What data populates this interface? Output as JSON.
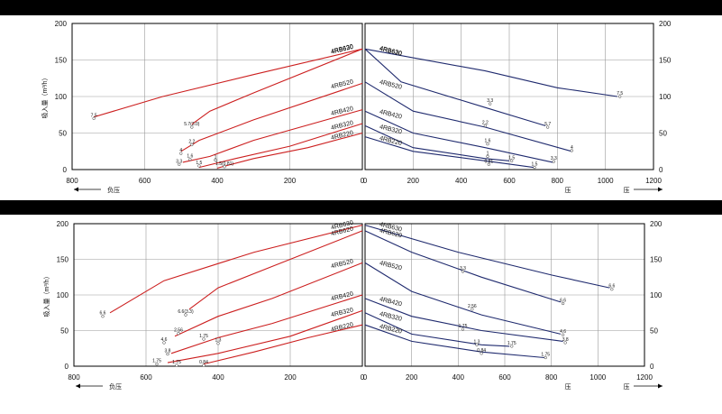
{
  "colors": {
    "vacuum": "#cc1f1f",
    "pressure": "#1f2a6e",
    "band": "#000000"
  },
  "y_axis_label": "吸入量（m³/h）",
  "left_caption": "负压",
  "right_caption_a": "压",
  "right_caption_b": "压",
  "chart_data": [
    {
      "type": "line",
      "panel": "top",
      "side": "vacuum",
      "xlim": [
        800,
        0
      ],
      "ylim": [
        0,
        200
      ],
      "x_ticks": [
        "800",
        "600",
        "400",
        "200",
        "0"
      ],
      "y_ticks": [
        "0",
        "50",
        "100",
        "150",
        "200"
      ],
      "series": [
        {
          "name": "4RB630",
          "x": [
            740,
            550,
            300,
            0
          ],
          "y": [
            72,
            100,
            130,
            165
          ],
          "labels": [
            {
              "text": "7.5",
              "x": 740,
              "y": 70
            }
          ]
        },
        {
          "name": "4RB620",
          "x": [
            470,
            420,
            300,
            0
          ],
          "y": [
            62,
            80,
            105,
            165
          ],
          "labels": [
            {
              "text": "5.7(3.0)",
              "x": 470,
              "y": 58
            }
          ]
        },
        {
          "name": "4RB520",
          "x": [
            500,
            450,
            300,
            0
          ],
          "y": [
            25,
            40,
            68,
            118
          ],
          "labels": [
            {
              "text": "4",
              "x": 500,
              "y": 22
            },
            {
              "text": "2.2",
              "x": 470,
              "y": 34
            }
          ]
        },
        {
          "name": "4RB420",
          "x": [
            495,
            420,
            300,
            0
          ],
          "y": [
            10,
            18,
            40,
            82
          ],
          "labels": [
            {
              "text": "3.3",
              "x": 505,
              "y": 7
            },
            {
              "text": "1.6",
              "x": 475,
              "y": 14
            }
          ]
        },
        {
          "name": "4RB320",
          "x": [
            450,
            350,
            200,
            0
          ],
          "y": [
            3,
            15,
            32,
            63
          ],
          "labels": [
            {
              "text": "1.5",
              "x": 450,
              "y": 5
            },
            {
              "text": "1",
              "x": 405,
              "y": 13
            }
          ]
        },
        {
          "name": "4RB220",
          "x": [
            400,
            300,
            150,
            0
          ],
          "y": [
            2,
            15,
            30,
            50
          ],
          "labels": [
            {
              "text": "1.5(0.81)",
              "x": 380,
              "y": 4
            }
          ]
        }
      ]
    },
    {
      "type": "line",
      "panel": "top",
      "side": "pressure",
      "xlim": [
        0,
        1200
      ],
      "ylim": [
        0,
        200
      ],
      "x_ticks": [
        "0",
        "200",
        "400",
        "600",
        "800",
        "1000",
        "1200"
      ],
      "y_ticks": [
        "0",
        "50",
        "100",
        "150",
        "200"
      ],
      "series": [
        {
          "name": "4RB630",
          "x": [
            0,
            500,
            800,
            1050
          ],
          "y": [
            165,
            135,
            112,
            100
          ],
          "labels": [
            {
              "text": "7.5",
              "x": 1060,
              "y": 100
            }
          ]
        },
        {
          "name": "4RB620",
          "x": [
            0,
            150,
            500,
            750
          ],
          "y": [
            165,
            120,
            85,
            60
          ],
          "labels": [
            {
              "text": "3.3",
              "x": 520,
              "y": 90
            },
            {
              "text": "5.7",
              "x": 760,
              "y": 58
            }
          ]
        },
        {
          "name": "4RB520",
          "x": [
            0,
            200,
            500,
            860
          ],
          "y": [
            120,
            80,
            58,
            25
          ],
          "labels": [
            {
              "text": "2.2",
              "x": 500,
              "y": 60
            },
            {
              "text": "4",
              "x": 860,
              "y": 26
            }
          ]
        },
        {
          "name": "4RB420",
          "x": [
            0,
            200,
            500,
            780
          ],
          "y": [
            80,
            50,
            30,
            10
          ],
          "labels": [
            {
              "text": "1.6",
              "x": 510,
              "y": 35
            },
            {
              "text": "3.3",
              "x": 785,
              "y": 11
            }
          ]
        },
        {
          "name": "4RB320",
          "x": [
            0,
            200,
            500,
            600
          ],
          "y": [
            60,
            30,
            15,
            12
          ],
          "labels": [
            {
              "text": "1",
              "x": 510,
              "y": 18
            },
            {
              "text": "1.5",
              "x": 610,
              "y": 12
            }
          ]
        },
        {
          "name": "4RB220",
          "x": [
            0,
            200,
            500,
            700
          ],
          "y": [
            45,
            25,
            12,
            3
          ],
          "labels": [
            {
              "text": "0.81",
              "x": 515,
              "y": 7
            },
            {
              "text": "1.5",
              "x": 705,
              "y": 3
            }
          ]
        }
      ]
    },
    {
      "type": "line",
      "panel": "bottom",
      "side": "vacuum",
      "xlim": [
        800,
        0
      ],
      "ylim": [
        0,
        200
      ],
      "x_ticks": [
        "800",
        "600",
        "400",
        "200",
        "0"
      ],
      "y_ticks": [
        "0",
        "50",
        "100",
        "150",
        "200"
      ],
      "series": [
        {
          "name": "4RB630",
          "x": [
            700,
            550,
            300,
            0
          ],
          "y": [
            75,
            120,
            160,
            198
          ],
          "labels": [
            {
              "text": "6.6",
              "x": 720,
              "y": 70
            }
          ]
        },
        {
          "name": "4RB620",
          "x": [
            480,
            400,
            250,
            0
          ],
          "y": [
            80,
            110,
            140,
            190
          ],
          "labels": [
            {
              "text": "6.6(3.3)",
              "x": 490,
              "y": 72
            }
          ]
        },
        {
          "name": "4RB520",
          "x": [
            520,
            400,
            250,
            0
          ],
          "y": [
            42,
            70,
            95,
            145
          ],
          "labels": [
            {
              "text": "2.56",
              "x": 510,
              "y": 46
            },
            {
              "text": "4.6",
              "x": 550,
              "y": 33
            }
          ]
        },
        {
          "name": "4RB420",
          "x": [
            530,
            400,
            250,
            0
          ],
          "y": [
            18,
            40,
            60,
            100
          ],
          "labels": [
            {
              "text": "3.8",
              "x": 540,
              "y": 17
            },
            {
              "text": "1.75",
              "x": 440,
              "y": 38
            },
            {
              "text": "1.3",
              "x": 400,
              "y": 32
            }
          ]
        },
        {
          "name": "4RB320",
          "x": [
            540,
            400,
            200,
            0
          ],
          "y": [
            5,
            18,
            42,
            78
          ],
          "labels": [
            {
              "text": "1.75",
              "x": 570,
              "y": 3
            },
            {
              "text": "1.75",
              "x": 515,
              "y": 1
            }
          ]
        },
        {
          "name": "4RB220",
          "x": [
            440,
            300,
            150,
            0
          ],
          "y": [
            3,
            20,
            40,
            58
          ],
          "labels": [
            {
              "text": "0.84",
              "x": 440,
              "y": 1
            }
          ]
        }
      ]
    },
    {
      "type": "line",
      "panel": "bottom",
      "side": "pressure",
      "xlim": [
        0,
        1200
      ],
      "ylim": [
        0,
        200
      ],
      "x_ticks": [
        "0",
        "200",
        "400",
        "600",
        "800",
        "1000",
        "1200"
      ],
      "y_ticks": [
        "0",
        "50",
        "100",
        "150",
        "200"
      ],
      "series": [
        {
          "name": "4RB630",
          "x": [
            0,
            400,
            800,
            1050
          ],
          "y": [
            198,
            160,
            128,
            110
          ],
          "labels": [
            {
              "text": "6.6",
              "x": 1060,
              "y": 108
            }
          ]
        },
        {
          "name": "4RB620",
          "x": [
            0,
            200,
            500,
            840
          ],
          "y": [
            190,
            160,
            125,
            90
          ],
          "labels": [
            {
              "text": "3.3",
              "x": 420,
              "y": 133
            },
            {
              "text": "6.6",
              "x": 850,
              "y": 88
            }
          ]
        },
        {
          "name": "4RB520",
          "x": [
            0,
            200,
            500,
            840
          ],
          "y": [
            145,
            105,
            72,
            45
          ],
          "labels": [
            {
              "text": "2.56",
              "x": 460,
              "y": 80
            },
            {
              "text": "4.6",
              "x": 850,
              "y": 44
            }
          ]
        },
        {
          "name": "4RB420",
          "x": [
            0,
            200,
            500,
            850
          ],
          "y": [
            95,
            70,
            50,
            35
          ],
          "labels": [
            {
              "text": "1.75",
              "x": 420,
              "y": 52
            },
            {
              "text": "3.8",
              "x": 860,
              "y": 33
            }
          ]
        },
        {
          "name": "4RB320",
          "x": [
            0,
            200,
            500,
            620
          ],
          "y": [
            75,
            45,
            30,
            28
          ],
          "labels": [
            {
              "text": "1.3",
              "x": 480,
              "y": 30
            },
            {
              "text": "1.75",
              "x": 630,
              "y": 28
            }
          ]
        },
        {
          "name": "4RB220",
          "x": [
            0,
            200,
            500,
            770
          ],
          "y": [
            58,
            35,
            20,
            12
          ],
          "labels": [
            {
              "text": "0.84",
              "x": 500,
              "y": 18
            },
            {
              "text": "1.75",
              "x": 775,
              "y": 12
            }
          ]
        }
      ]
    }
  ]
}
